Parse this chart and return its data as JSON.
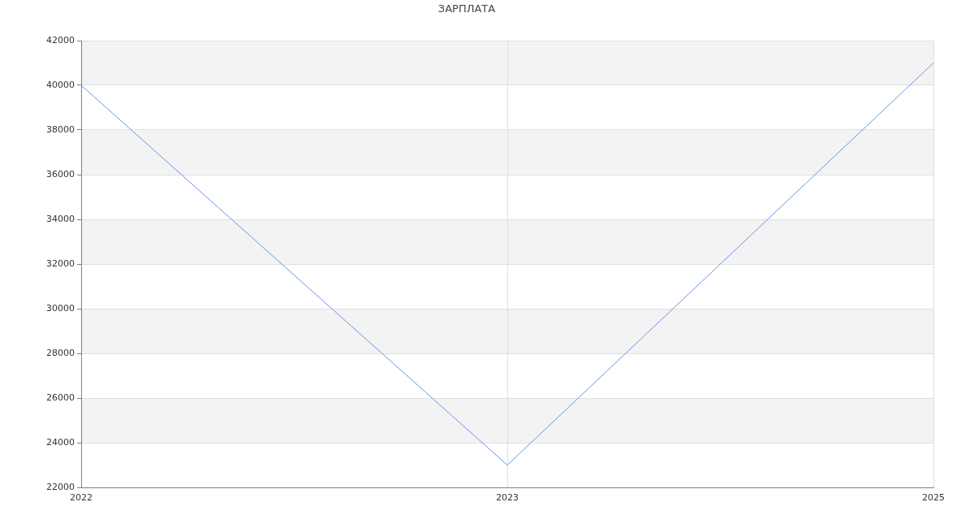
{
  "chart_data": {
    "type": "line",
    "title": "ЗАРПЛАТА",
    "categories": [
      "2022",
      "2023",
      "2025"
    ],
    "series": [
      {
        "color": "#6495ed",
        "values": [
          40000,
          23000,
          41000
        ]
      }
    ],
    "ylim": [
      22000,
      42000
    ],
    "yticks": [
      22000,
      24000,
      26000,
      28000,
      30000,
      32000,
      34000,
      36000,
      38000,
      40000,
      42000
    ],
    "grid": true,
    "legend": false,
    "marker": "none",
    "line_style": "solid"
  }
}
